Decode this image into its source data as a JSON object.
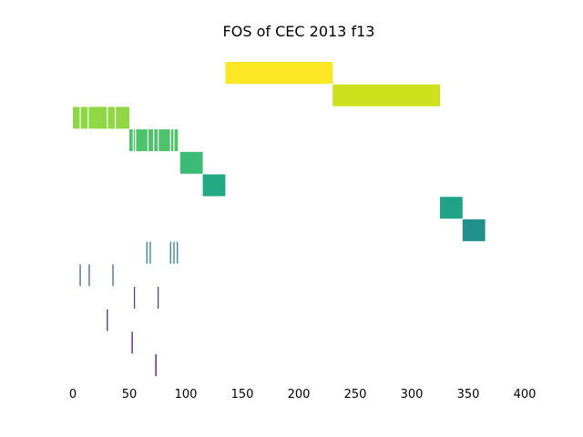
{
  "chart_data": {
    "type": "bar",
    "orientation": "horizontal-timeline",
    "title": "FOS of CEC 2013 f13",
    "xlabel": "",
    "ylabel": "",
    "xlim": [
      -1,
      409
    ],
    "xticks": [
      0,
      50,
      100,
      150,
      200,
      250,
      300,
      350,
      400
    ],
    "grid": false,
    "axes_visible": false,
    "rows": [
      {
        "row": 0,
        "color": "#fde725",
        "segments": [
          [
            135,
            230
          ]
        ]
      },
      {
        "row": 1,
        "color": "#cde11d",
        "segments": [
          [
            230,
            325
          ]
        ]
      },
      {
        "row": 2,
        "color": "#8fd744",
        "segments": [
          [
            0,
            6
          ],
          [
            7,
            13
          ],
          [
            14,
            30
          ],
          [
            31,
            37
          ],
          [
            38,
            50
          ]
        ]
      },
      {
        "row": 3,
        "color": "#4ec36b",
        "segments": [
          [
            50,
            53
          ],
          [
            54,
            55
          ],
          [
            56,
            66
          ],
          [
            67,
            71
          ],
          [
            72,
            75
          ],
          [
            76,
            86
          ],
          [
            87,
            89
          ],
          [
            90,
            93
          ]
        ]
      },
      {
        "row": 4,
        "color": "#3bbb75",
        "segments": [
          [
            95,
            115
          ]
        ]
      },
      {
        "row": 5,
        "color": "#23a983",
        "segments": [
          [
            115,
            135
          ]
        ]
      },
      {
        "row": 6,
        "color": "#20a386",
        "segments": [
          [
            325,
            345
          ]
        ]
      },
      {
        "row": 7,
        "color": "#21918c",
        "segments": [
          [
            345,
            365
          ]
        ]
      },
      {
        "row": 8,
        "color": "#2a788e",
        "segments": [
          [
            65,
            66
          ],
          [
            68,
            69
          ],
          [
            86,
            87
          ],
          [
            89,
            90
          ],
          [
            92,
            93
          ]
        ]
      },
      {
        "row": 9,
        "color": "#355f8d",
        "segments": [
          [
            6,
            7
          ],
          [
            14,
            15
          ],
          [
            35,
            36
          ]
        ]
      },
      {
        "row": 10,
        "color": "#414487",
        "segments": [
          [
            54,
            55
          ],
          [
            75,
            76
          ]
        ]
      },
      {
        "row": 11,
        "color": "#482878",
        "segments": [
          [
            30,
            31
          ]
        ]
      },
      {
        "row": 12,
        "color": "#471365",
        "segments": [
          [
            52,
            53
          ]
        ]
      },
      {
        "row": 13,
        "color": "#440154",
        "segments": [
          [
            73,
            74
          ]
        ]
      }
    ]
  }
}
